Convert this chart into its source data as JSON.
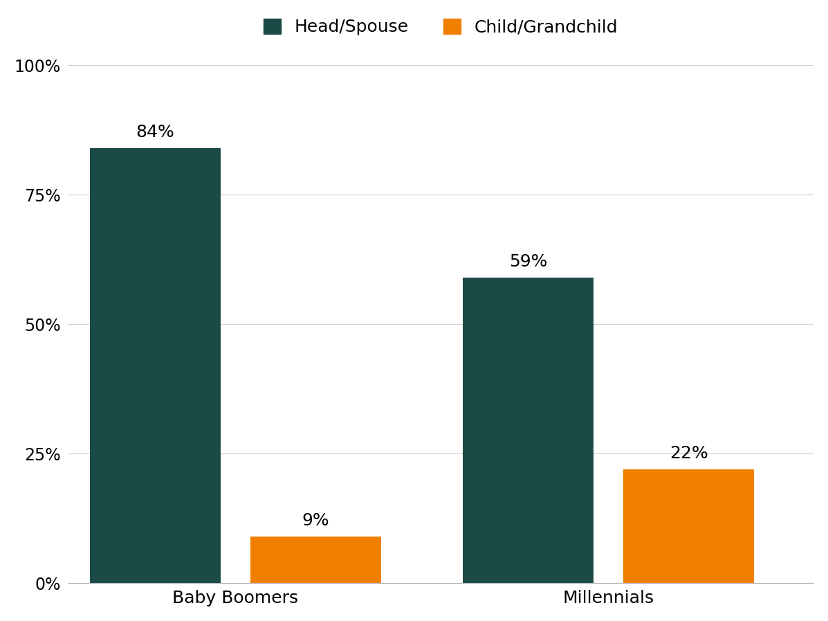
{
  "groups": [
    "Baby Boomers",
    "Millennials"
  ],
  "series": {
    "Head/Spouse": [
      84,
      59
    ],
    "Child/Grandchild": [
      9,
      22
    ]
  },
  "colors": {
    "Head/Spouse": "#1c4a47",
    "Child/Grandchild": "#f07f00"
  },
  "bar_width": 0.35,
  "bar_gap": 0.08,
  "group_positions": [
    0,
    1
  ],
  "xlim": [
    -0.45,
    1.55
  ],
  "ylim": [
    0,
    105
  ],
  "yticks": [
    0,
    25,
    50,
    75,
    100
  ],
  "ytick_labels": [
    "0%",
    "25%",
    "50%",
    "75%",
    "100%"
  ],
  "label_fontsize": 18,
  "tick_fontsize": 17,
  "legend_fontsize": 18,
  "annotation_fontsize": 18,
  "background_color": "#ffffff",
  "grid_color": "#d0d0d0"
}
